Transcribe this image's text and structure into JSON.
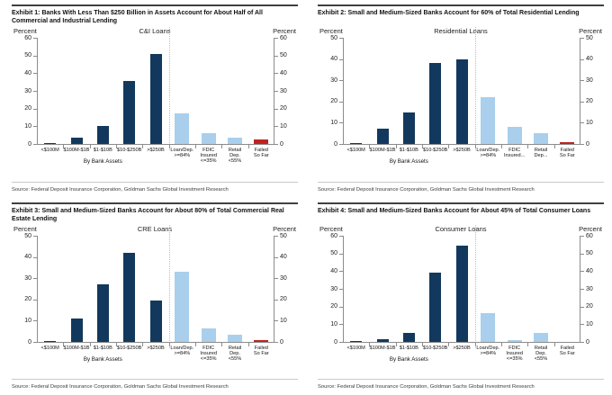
{
  "colors": {
    "bar_dark": "#12395d",
    "bar_light": "#a9cfec",
    "bar_red": "#bf2320",
    "axis": "#8c8c8c",
    "divider": "#bdbdbd",
    "rule_dark": "#404040",
    "rule_light": "#c9c9c9"
  },
  "chart_data": [
    {
      "type": "bar",
      "exhibit_title": "Exhibit 1: Banks With Less Than $250 Billion in Assets Account for About Half of All Commercial and Industrial Lending",
      "title": "C&I Loans",
      "left_axis_label": "Percent",
      "right_axis_label": "Percent",
      "ylim": [
        0,
        60
      ],
      "yticks": [
        0,
        10,
        20,
        30,
        40,
        50,
        60
      ],
      "categories": [
        "<$100M",
        "$100M-$1B",
        "$1-$10B",
        "$10-$250B",
        ">$250B",
        "Loan/Dep. >=84%",
        "FDIC Insured <=35%",
        "Retail Dep. <55%",
        "Failed So Far"
      ],
      "category_label_lines": [
        [
          "<$100M"
        ],
        [
          "$100M-$1B"
        ],
        [
          "$1-$10B"
        ],
        [
          "$10-$250B"
        ],
        [
          ">$250B"
        ],
        [
          "Loan/Dep.",
          ">=84%"
        ],
        [
          "FDIC",
          "Insured",
          "<=35%"
        ],
        [
          "Retail",
          "Dep.",
          "<55%"
        ],
        [
          "Failed",
          "So Far"
        ]
      ],
      "values": [
        0.3,
        3.5,
        10,
        35.5,
        51,
        17.5,
        6,
        3.5,
        2.5
      ],
      "bar_styles": [
        "dark",
        "dark",
        "dark",
        "dark",
        "dark",
        "light",
        "light",
        "light",
        "red"
      ],
      "divider_after": 4,
      "xgroup_label": "By Bank Assets",
      "source": "Source: Federal Deposit Insurance Corporation, Goldman Sachs Global Investment Research"
    },
    {
      "type": "bar",
      "exhibit_title": "Exhibit 2: Small and Medium-Sized Banks Account for 60% of Total Residential Lending",
      "title": "Residential Loans",
      "left_axis_label": "Percent",
      "right_axis_label": "Percent",
      "ylim": [
        0,
        50
      ],
      "yticks": [
        0,
        10,
        20,
        30,
        40,
        50
      ],
      "categories": [
        "<$100M",
        "$100M-$1B",
        "$1-$10B",
        "$10-$250B",
        ">$250B",
        "Loan/Dep. >=84%",
        "FDIC Insured...",
        "Retail Dep...",
        "Failed So Far"
      ],
      "category_label_lines": [
        [
          "<$100M"
        ],
        [
          "$100M-$1B"
        ],
        [
          "$1-$10B"
        ],
        [
          "$10-$250B"
        ],
        [
          ">$250B"
        ],
        [
          "Loan/Dep.",
          ">=84%"
        ],
        [
          "FDIC",
          "Insured..."
        ],
        [
          "Retail",
          "Dep..."
        ],
        [
          "Failed",
          "So Far"
        ]
      ],
      "values": [
        0.5,
        7,
        15,
        38,
        40,
        22,
        8,
        5,
        1
      ],
      "bar_styles": [
        "dark",
        "dark",
        "dark",
        "dark",
        "dark",
        "light",
        "light",
        "light",
        "red"
      ],
      "divider_after": 4,
      "xgroup_label": "By Bank Assets",
      "source": "Source: Federal Deposit Insurance Corporation, Goldman Sachs Global Investment Research"
    },
    {
      "type": "bar",
      "exhibit_title": "Exhibit 3: Small and Medium-Sized Banks Account for About 80% of Total Commercial Real Estate Lending",
      "title": "CRE Loans",
      "left_axis_label": "Percent",
      "right_axis_label": "Percent",
      "ylim": [
        0,
        50
      ],
      "yticks": [
        0,
        10,
        20,
        30,
        40,
        50
      ],
      "categories": [
        "<$100M",
        "$100M-$1B",
        "$1-$10B",
        "$10-$250B",
        ">$250B",
        "Loan/Dep. >=84%",
        "FDIC Insured <=35%",
        "Retail Dep. <55%",
        "Failed So Far"
      ],
      "category_label_lines": [
        [
          "<$100M"
        ],
        [
          "$100M-$1B"
        ],
        [
          "$1-$10B"
        ],
        [
          "$10-$250B"
        ],
        [
          ">$250B"
        ],
        [
          "Loan/Dep.",
          ">=84%"
        ],
        [
          "FDIC",
          "Insured",
          "<=35%"
        ],
        [
          "Retail",
          "Dep.",
          "<55%"
        ],
        [
          "Failed",
          "So Far"
        ]
      ],
      "values": [
        0.5,
        11,
        27,
        42,
        19.5,
        33,
        6.5,
        3.5,
        1
      ],
      "bar_styles": [
        "dark",
        "dark",
        "dark",
        "dark",
        "dark",
        "light",
        "light",
        "light",
        "red"
      ],
      "divider_after": 4,
      "xgroup_label": "By Bank Assets",
      "source": "Source: Federal Deposit Insurance Corporation, Goldman Sachs Global Investment Research"
    },
    {
      "type": "bar",
      "exhibit_title": "Exhibit 4: Small and Medium-Sized Banks Account for About 45% of Total Consumer Loans",
      "title": "Consumer Loans",
      "left_axis_label": "Percent",
      "right_axis_label": "Percent",
      "ylim": [
        0,
        60
      ],
      "yticks": [
        0,
        10,
        20,
        30,
        40,
        50,
        60
      ],
      "categories": [
        "<$100M",
        "$100M-$1B",
        "$1-$10B",
        "$10-$250B",
        ">$250B",
        "Loan/Dep. >=84%",
        "FDIC Insured <=35%",
        "Retail Dep. <55%",
        "Failed So Far"
      ],
      "category_label_lines": [
        [
          "<$100M"
        ],
        [
          "$100M-$1B"
        ],
        [
          "$1-$10B"
        ],
        [
          "$10-$250B"
        ],
        [
          ">$250B"
        ],
        [
          "Loan/Dep.",
          ">=84%"
        ],
        [
          "FDIC",
          "Insured",
          "<=35%"
        ],
        [
          "Retail",
          "Dep.",
          "<55%"
        ],
        [
          "Failed",
          "So Far"
        ]
      ],
      "values": [
        0.3,
        1.5,
        5,
        39,
        54.5,
        16.5,
        1,
        5,
        0.2
      ],
      "bar_styles": [
        "dark",
        "dark",
        "dark",
        "dark",
        "dark",
        "light",
        "light",
        "light",
        "red"
      ],
      "divider_after": 4,
      "xgroup_label": "By Bank Assets",
      "source": "Source: Federal Deposit Insurance Corporation, Goldman Sachs Global Investment Research"
    }
  ]
}
